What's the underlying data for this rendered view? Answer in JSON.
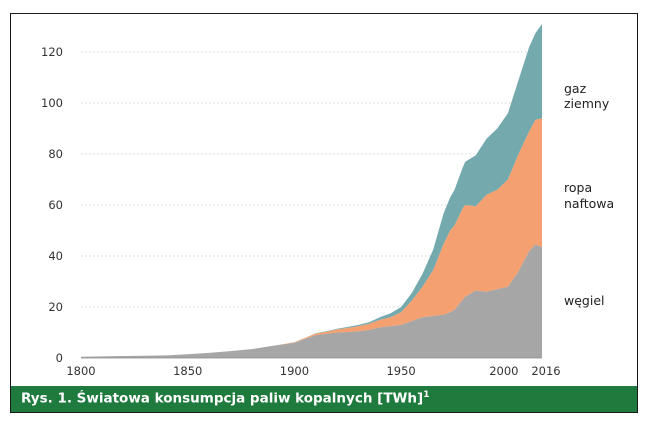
{
  "chart_data": {
    "type": "area",
    "stacked": true,
    "title": "",
    "xlabel": "",
    "ylabel": "",
    "xlim": [
      1800,
      2016
    ],
    "ylim": [
      0,
      130
    ],
    "x_ticks": [
      "1800",
      "1850",
      "1900",
      "1950",
      "2000",
      "2016"
    ],
    "y_ticks": [
      "0",
      "20",
      "40",
      "60",
      "80",
      "100",
      "120"
    ],
    "grid": "horizontal dotted",
    "legend": "right (direct labels)",
    "x": [
      1800,
      1820,
      1840,
      1850,
      1860,
      1870,
      1880,
      1890,
      1900,
      1905,
      1910,
      1915,
      1920,
      1925,
      1930,
      1935,
      1940,
      1945,
      1950,
      1955,
      1960,
      1965,
      1970,
      1973,
      1975,
      1979,
      1980,
      1985,
      1990,
      1995,
      2000,
      2005,
      2010,
      2013,
      2016
    ],
    "series": [
      {
        "name": "węgiel",
        "color": "#a6a6a6",
        "values": [
          0.5,
          0.8,
          1.0,
          1.5,
          2.0,
          2.7,
          3.5,
          4.8,
          6.0,
          7.5,
          9.0,
          9.5,
          10.0,
          10.2,
          10.5,
          11.0,
          12.0,
          12.5,
          13.0,
          14.5,
          16.0,
          16.5,
          17.0,
          18.0,
          19.0,
          23.0,
          24.0,
          26.5,
          26.0,
          27.0,
          28.0,
          34.0,
          42.0,
          44.5,
          43.5
        ]
      },
      {
        "name": "ropa naftowa",
        "color": "#f4a070",
        "values": [
          0,
          0,
          0,
          0,
          0,
          0,
          0,
          0,
          0.2,
          0.4,
          0.6,
          0.8,
          1.2,
          1.6,
          2.0,
          2.4,
          3.0,
          3.5,
          5.0,
          8.0,
          12.0,
          18.0,
          28.0,
          32.0,
          33.0,
          36.0,
          36.0,
          33.0,
          38.0,
          39.0,
          42.0,
          46.0,
          47.0,
          49.0,
          50.5
        ]
      },
      {
        "name": "gaz ziemny",
        "color": "#74a9ad",
        "values": [
          0,
          0,
          0,
          0,
          0,
          0,
          0,
          0,
          0,
          0,
          0.1,
          0.2,
          0.3,
          0.4,
          0.5,
          0.6,
          1.0,
          1.5,
          2.0,
          3.0,
          5.0,
          8.0,
          12.0,
          13.0,
          14.0,
          16.0,
          17.0,
          20.0,
          22.0,
          24.0,
          26.0,
          29.0,
          33.0,
          34.0,
          37.0
        ]
      }
    ]
  },
  "labels": {
    "gaz_line1": "gaz",
    "gaz_line2": "ziemny",
    "ropa_line1": "ropa",
    "ropa_line2": "naftowa",
    "wegiel": "węgiel"
  },
  "caption": {
    "text": "Rys. 1. Światowa konsumpcja paliw kopalnych [TWh]",
    "footnote": "1"
  },
  "colors": {
    "caption_bg": "#1f7a3e",
    "frame": "#1a1a1a"
  }
}
